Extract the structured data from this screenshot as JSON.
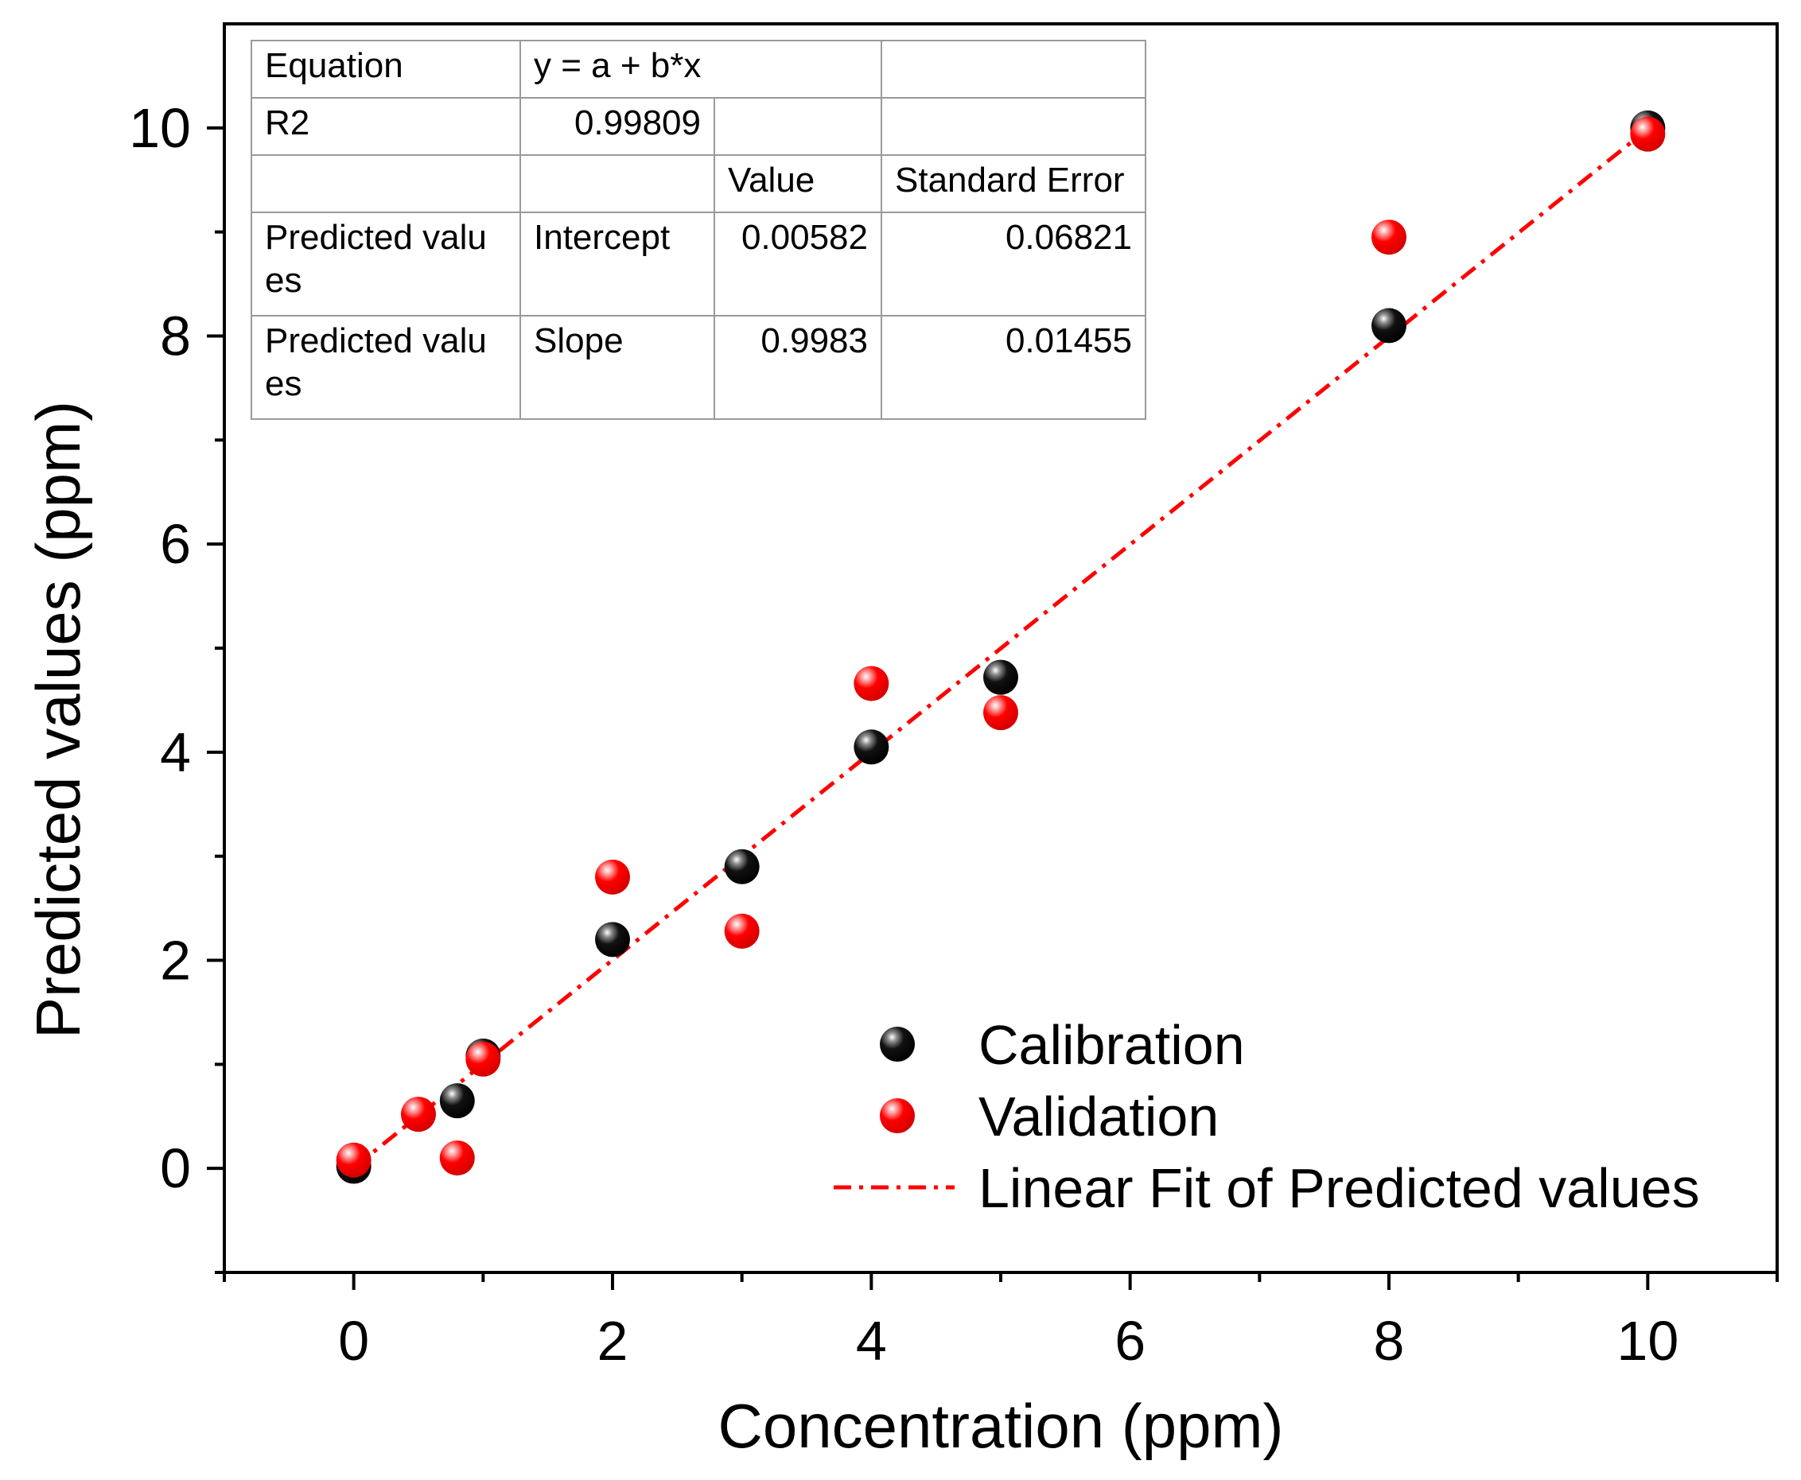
{
  "chart_data": {
    "type": "scatter",
    "xlabel": "Concentration (ppm)",
    "ylabel": "Predicted values (ppm)",
    "xlim": [
      -1,
      11
    ],
    "ylim": [
      -1,
      11
    ],
    "x_ticks": [
      0,
      2,
      4,
      6,
      8,
      10
    ],
    "y_ticks": [
      0,
      2,
      4,
      6,
      8,
      10
    ],
    "minor_x_ticks": [
      -1,
      1,
      3,
      5,
      7,
      9,
      11
    ],
    "minor_y_ticks": [
      -1,
      1,
      3,
      5,
      7,
      9
    ],
    "x_tick_labels": [
      "0",
      "2",
      "4",
      "6",
      "8",
      "10"
    ],
    "y_tick_labels": [
      "0",
      "2",
      "4",
      "6",
      "8",
      "10"
    ],
    "grid": false,
    "legend_position": "bottom-right",
    "series": [
      {
        "name": "Calibration",
        "color": "#000000",
        "x": [
          0,
          0.8,
          1,
          2,
          3,
          4,
          5,
          8,
          10
        ],
        "y": [
          0.02,
          0.65,
          1.08,
          2.2,
          2.9,
          4.05,
          4.72,
          8.1,
          10.0
        ]
      },
      {
        "name": "Validation",
        "color": "#ff0000",
        "x": [
          0,
          0.5,
          0.8,
          1,
          2,
          3,
          4,
          5,
          8,
          10
        ],
        "y": [
          0.08,
          0.52,
          0.1,
          1.05,
          2.8,
          2.28,
          4.66,
          4.38,
          8.95,
          9.94
        ]
      },
      {
        "name": "Linear Fit of Predicted values",
        "color": "#ff0000",
        "style": "dash-dot",
        "intercept": 0.00582,
        "slope": 0.9983,
        "x_range": [
          0,
          10
        ]
      }
    ],
    "fit_table": {
      "equation_label": "Equation",
      "equation": "y = a + b*x",
      "r2_label": "R2",
      "r2": "0.99809",
      "value_header": "Value",
      "stderr_header": "Standard Error",
      "rows": [
        {
          "name_line1": "Predicted valu",
          "name_line2": "es",
          "param": "Intercept",
          "value": "0.00582",
          "stderr": "0.06821"
        },
        {
          "name_line1": "Predicted valu",
          "name_line2": "es",
          "param": "Slope",
          "value": "0.9983",
          "stderr": "0.01455"
        }
      ]
    }
  }
}
